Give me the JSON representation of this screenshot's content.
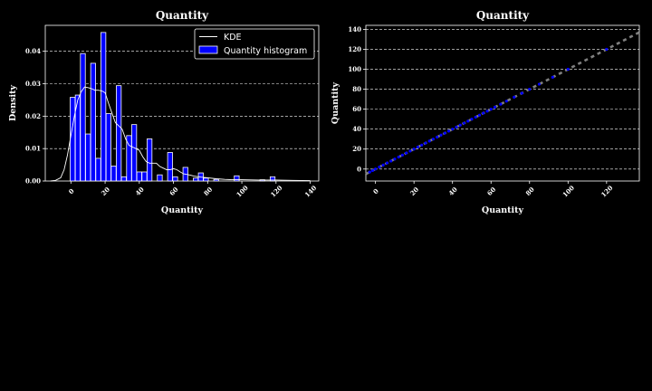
{
  "colors": {
    "background": "#000000",
    "bar_fill": "#0000ff",
    "bar_edge": "#ffffff",
    "kde_line": "#ffffff",
    "qq_points": "#0000ff",
    "qq_line": "#808080",
    "grid": "#ffffff"
  },
  "chart_data": [
    {
      "type": "bar",
      "title": "Quantity",
      "xlabel": "Quantity",
      "ylabel": "Density",
      "xlim": [
        -15,
        145
      ],
      "ylim": [
        0,
        0.048
      ],
      "xticks": [
        "0",
        "20",
        "40",
        "60",
        "80",
        "100",
        "120",
        "140"
      ],
      "yticks": [
        "0.00",
        "0.01",
        "0.02",
        "0.03",
        "0.04"
      ],
      "grid": "y-dashed",
      "legend_position": "upper right",
      "legend": [
        "KDE",
        "Quantity histogram"
      ],
      "bar_width": 2.85,
      "series": [
        {
          "name": "Quantity histogram",
          "bars": [
            {
              "x": 1,
              "density": 0.0258
            },
            {
              "x": 4,
              "density": 0.0265
            },
            {
              "x": 7,
              "density": 0.0393
            },
            {
              "x": 10,
              "density": 0.0145
            },
            {
              "x": 13,
              "density": 0.0363
            },
            {
              "x": 16,
              "density": 0.007
            },
            {
              "x": 19,
              "density": 0.0458
            },
            {
              "x": 22,
              "density": 0.0208
            },
            {
              "x": 25,
              "density": 0.0046
            },
            {
              "x": 28,
              "density": 0.0294
            },
            {
              "x": 31,
              "density": 0.0013
            },
            {
              "x": 34,
              "density": 0.014
            },
            {
              "x": 37,
              "density": 0.0174
            },
            {
              "x": 40,
              "density": 0.0028
            },
            {
              "x": 43,
              "density": 0.0028
            },
            {
              "x": 46,
              "density": 0.013
            },
            {
              "x": 52,
              "density": 0.0019
            },
            {
              "x": 58,
              "density": 0.0088
            },
            {
              "x": 61,
              "density": 0.0013
            },
            {
              "x": 67,
              "density": 0.0042
            },
            {
              "x": 73,
              "density": 0.0009
            },
            {
              "x": 76,
              "density": 0.0025
            },
            {
              "x": 79,
              "density": 0.0009
            },
            {
              "x": 85,
              "density": 0.0005
            },
            {
              "x": 97,
              "density": 0.0016
            },
            {
              "x": 112,
              "density": 0.0004
            },
            {
              "x": 118,
              "density": 0.0013
            }
          ]
        },
        {
          "name": "KDE",
          "type": "line",
          "x": [
            -12,
            -9,
            -6,
            -4,
            -2,
            0,
            2,
            4,
            6,
            8,
            10,
            12,
            14,
            16,
            18,
            20,
            22,
            24,
            26,
            28,
            30,
            32,
            34,
            36,
            38,
            40,
            42,
            44,
            46,
            48,
            50,
            52,
            54,
            56,
            58,
            60,
            62,
            64,
            66,
            68,
            70,
            72,
            76,
            80,
            85,
            90,
            95,
            100,
            110,
            120,
            130,
            140
          ],
          "y": [
            0.0,
            0.0002,
            0.001,
            0.0035,
            0.008,
            0.014,
            0.02,
            0.025,
            0.0275,
            0.029,
            0.0288,
            0.0285,
            0.028,
            0.028,
            0.0278,
            0.0272,
            0.024,
            0.021,
            0.018,
            0.017,
            0.016,
            0.013,
            0.011,
            0.0105,
            0.01,
            0.0095,
            0.0075,
            0.006,
            0.0055,
            0.0055,
            0.0055,
            0.0045,
            0.004,
            0.0035,
            0.0035,
            0.0038,
            0.0035,
            0.0028,
            0.0022,
            0.002,
            0.0018,
            0.0015,
            0.0012,
            0.001,
            0.0007,
            0.0005,
            0.0004,
            0.0004,
            0.0003,
            0.0003,
            0.0002,
            0.0001
          ]
        }
      ]
    },
    {
      "type": "scatter",
      "title": "Quantity",
      "xlabel": "Quantity",
      "ylabel": "Quantity",
      "xlim": [
        -5,
        137
      ],
      "ylim": [
        -12,
        144
      ],
      "xticks": [
        "0",
        "20",
        "40",
        "60",
        "80",
        "100",
        "120"
      ],
      "yticks": [
        "0",
        "20",
        "40",
        "60",
        "80",
        "100",
        "120",
        "140"
      ],
      "grid": "y-dashed",
      "series": [
        {
          "name": "points",
          "x": [
            -3,
            -1.5,
            0,
            2,
            4,
            6,
            8,
            10,
            12,
            14,
            16,
            18,
            20,
            22,
            24,
            26,
            28,
            30,
            32,
            34,
            36,
            38,
            40,
            42,
            44,
            46,
            48,
            50,
            52,
            54,
            56,
            58,
            60,
            62,
            65,
            68,
            72,
            76,
            80,
            85,
            92,
            100,
            120
          ],
          "y": [
            -3,
            -1.5,
            0,
            2,
            4,
            6,
            8,
            10,
            12,
            14,
            16,
            18,
            20,
            22,
            24,
            26,
            28,
            30,
            32,
            34,
            36,
            38,
            40,
            42,
            44,
            46,
            48,
            50,
            52,
            54,
            56,
            58,
            60,
            62,
            65,
            68,
            72,
            76,
            80,
            85,
            92,
            100,
            120
          ]
        },
        {
          "name": "reference line",
          "type": "line",
          "x": [
            -5,
            137
          ],
          "y": [
            -5,
            137
          ]
        }
      ]
    }
  ]
}
